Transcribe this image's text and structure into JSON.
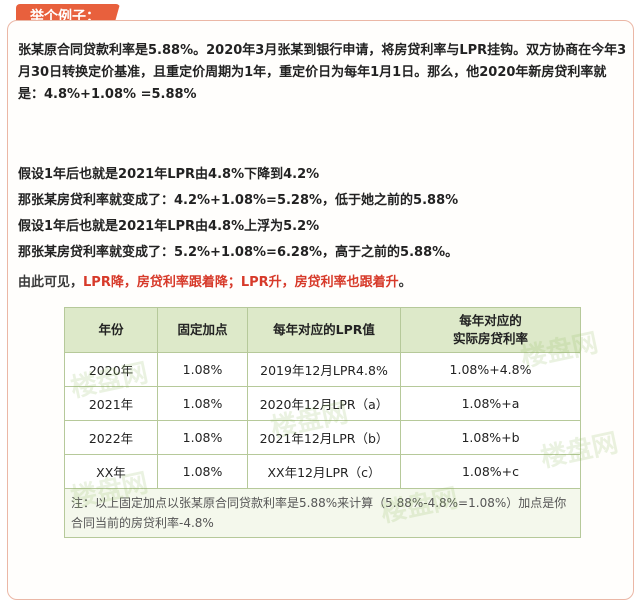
{
  "tag": "举个例子：",
  "intro": "张某原合同贷款利率是5.88%。2020年3月张某到银行申请，将房贷利率与LPR挂钩。双方协商在今年3月30日转换定价基准，且重定价周期为1年，重定价日为每年1月1日。那么，他2020年新房贷利率就是：4.8%+1.08% =5.88%",
  "scenarios": [
    "假设1年后也就是2021年LPR由4.8%下降到4.2%",
    "那张某房贷利率就变成了：4.2%+1.08%=5.28%，低于她之前的5.88%",
    "假设1年后也就是2021年LPR由4.8%上浮为5.2%",
    "那张某房贷利率就变成了：5.2%+1.08%=6.28%，高于之前的5.88%。"
  ],
  "conclusion": {
    "prefix": "由此可见，",
    "part1": "LPR降，房贷利率跟着降；",
    "part2": "LPR升，房贷利率也跟着升",
    "suffix": "。"
  },
  "table": {
    "headers": [
      "年份",
      "固定加点",
      "每年对应的LPR值",
      "每年对应的\n实际房贷利率"
    ],
    "rows": [
      [
        "2020年",
        "1.08%",
        "2019年12月LPR4.8%",
        "1.08%+4.8%"
      ],
      [
        "2021年",
        "1.08%",
        "2020年12月LPR（a）",
        "1.08%+a"
      ],
      [
        "2022年",
        "1.08%",
        "2021年12月LPR（b）",
        "1.08%+b"
      ],
      [
        "XX年",
        "1.08%",
        "XX年12月LPR（c）",
        "1.08%+c"
      ]
    ],
    "note": "注：以上固定加点以张某原合同贷款利率是5.88%来计算（5.88%-4.8%=1.08%）加点是你合同当前的房贷利率-4.8%"
  },
  "watermark": "楼盘网"
}
